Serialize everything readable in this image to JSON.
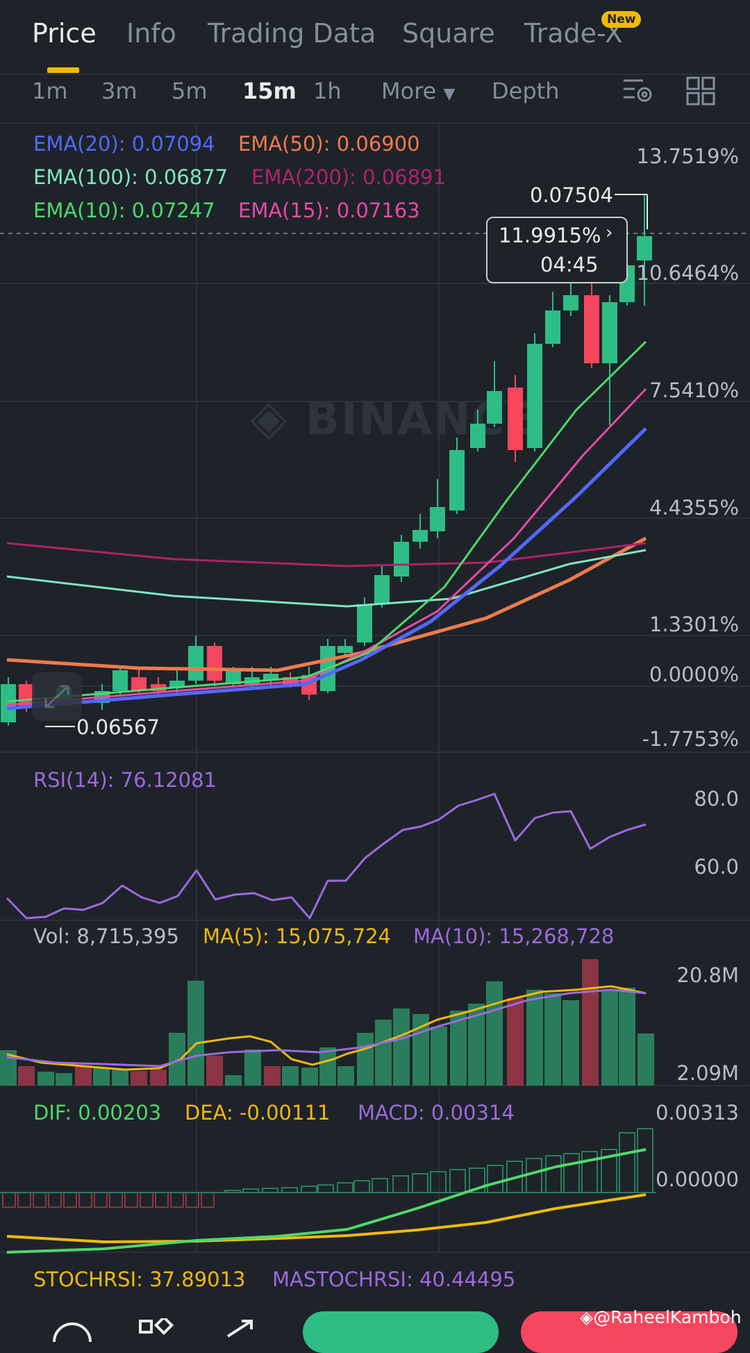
{
  "tabs": [
    {
      "label": "Price",
      "active": true
    },
    {
      "label": "Info",
      "active": false
    },
    {
      "label": "Trading Data",
      "active": false
    },
    {
      "label": "Square",
      "active": false
    },
    {
      "label": "Trade-X",
      "active": false
    }
  ],
  "new_badge": "New",
  "intervals": [
    {
      "label": "1m",
      "active": false
    },
    {
      "label": "3m",
      "active": false
    },
    {
      "label": "5m",
      "active": false
    },
    {
      "label": "15m",
      "active": true
    },
    {
      "label": "1h",
      "active": false
    },
    {
      "label": "More",
      "active": false
    },
    {
      "label": "Depth",
      "active": false
    }
  ],
  "ema_legend": {
    "ema20": "EMA(20): 0.07094",
    "ema50": "EMA(50): 0.06900",
    "ema100": "EMA(100): 0.06877",
    "ema200": "EMA(200): 0.06891",
    "ema10": "EMA(10): 0.07247",
    "ema15": "EMA(15): 0.07163"
  },
  "price_axis": [
    "13.7519%",
    "10.6464%",
    "7.5410%",
    "4.4355%",
    "1.3301%",
    "0.0000%",
    "-1.7753%"
  ],
  "high_label": "0.07504",
  "low_label": "0.06567",
  "tooltip": {
    "percent": "11.9915%",
    "time": "04:45"
  },
  "watermark": "BINANCE",
  "rsi": {
    "label": "RSI(14): 76.12081",
    "axis": [
      "80.0",
      "60.0"
    ]
  },
  "volume": {
    "vol": "Vol: 8,715,395",
    "ma5": "MA(5): 15,075,724",
    "ma10": "MA(10): 15,268,728",
    "axis": [
      "20.8M",
      "2.09M"
    ]
  },
  "macd": {
    "dif": "DIF: 0.00203",
    "dea": "DEA: -0.00111",
    "macd": "MACD: 0.00314",
    "axis": [
      "0.00313",
      "0.00000"
    ]
  },
  "stochrsi": {
    "stoch": "STOCHRSI: 37.89013",
    "mastoch": "MASTOCHRSI: 40.44495"
  },
  "credit": "@RaheelKamboh",
  "colors": {
    "up": "#2ebd85",
    "down": "#f6465d",
    "ema20": "#5468ff",
    "ema50": "#ef7b4d",
    "ema100": "#7ee6c4",
    "ema200": "#b0226a",
    "ema10": "#4fd86a",
    "ema15": "#e54ba6",
    "accent": "#f0b90b"
  },
  "icons": [
    "chart-settings-icon",
    "layout-grid-icon",
    "chat-icon",
    "apps-icon",
    "share-icon",
    "binance-logo-icon"
  ]
}
